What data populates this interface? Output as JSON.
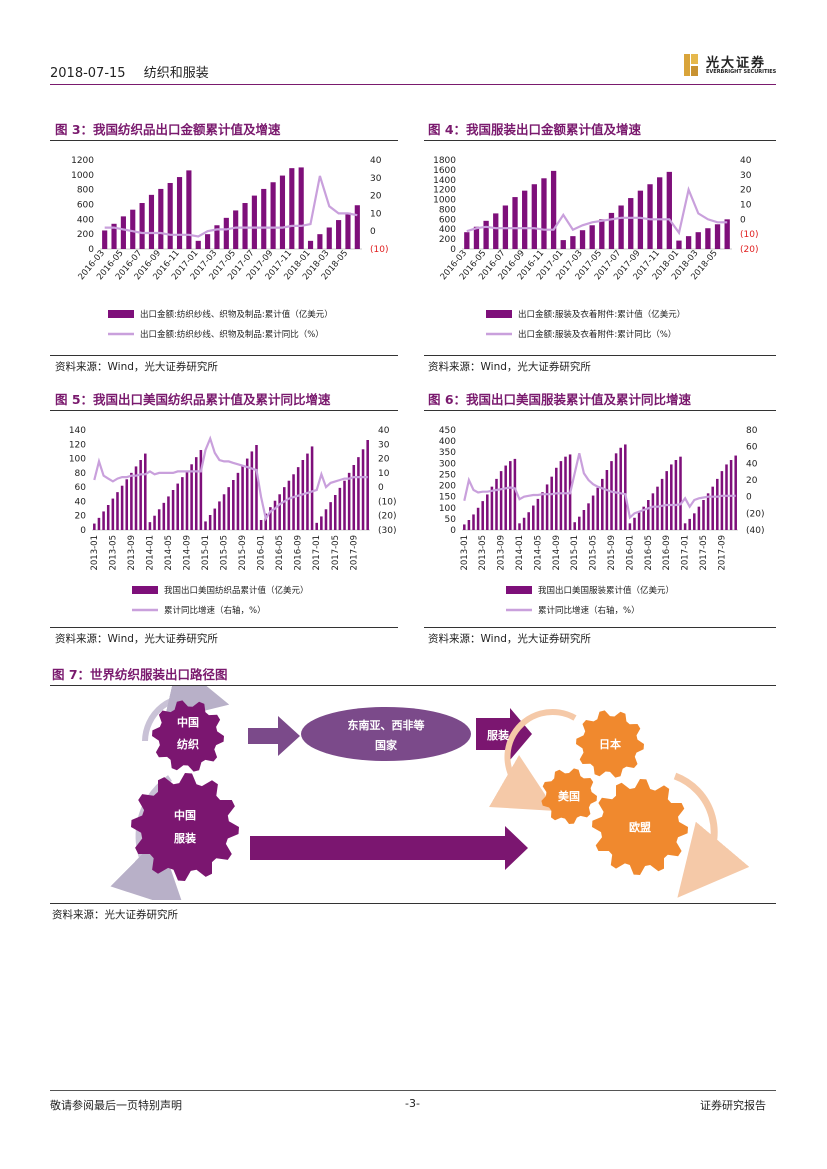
{
  "header": {
    "date": "2018-07-15",
    "section": "纺织和服装",
    "logo_text": "光大证券",
    "logo_en": "EVERBRIGHT SECURITIES"
  },
  "figures": [
    {
      "id": "fig3",
      "title": "图 3：我国纺织品出口金额累计值及增速",
      "source": "资料来源：Wind，光大证券研究所"
    },
    {
      "id": "fig4",
      "title": "图 4：我国服装出口金额累计值及增速",
      "source": "资料来源：Wind，光大证券研究所"
    },
    {
      "id": "fig5",
      "title": "图 5：我国出口美国纺织品累计值及累计同比增速",
      "source": "资料来源：Wind，光大证券研究所"
    },
    {
      "id": "fig6",
      "title": "图 6：我国出口美国服装累计值及累计同比增速",
      "source": "资料来源：Wind，光大证券研究所"
    }
  ],
  "chart_data": [
    {
      "type": "bar",
      "id": "fig3",
      "title": "图 3：我国纺织品出口金额累计值及增速",
      "categories": [
        "2016-03",
        "2016-04",
        "2016-05",
        "2016-06",
        "2016-07",
        "2016-08",
        "2016-09",
        "2016-10",
        "2016-11",
        "2016-12",
        "2017-01",
        "2017-02",
        "2017-03",
        "2017-04",
        "2017-05",
        "2017-06",
        "2017-07",
        "2017-08",
        "2017-09",
        "2017-10",
        "2017-11",
        "2017-12",
        "2018-01",
        "2018-02",
        "2018-03",
        "2018-04",
        "2018-05",
        "2018-06"
      ],
      "xtick_labels": [
        "2016-03",
        "2016-05",
        "2016-07",
        "2016-09",
        "2016-11",
        "2017-01",
        "2017-03",
        "2017-05",
        "2017-07",
        "2017-09",
        "2017-11",
        "2018-01",
        "2018-03",
        "2018-05"
      ],
      "series": [
        {
          "name": "出口金额:纺织纱线、织物及制品:累计值（亿美元）",
          "axis": "left",
          "type": "bar",
          "values": [
            250,
            340,
            440,
            530,
            620,
            730,
            810,
            890,
            970,
            1060,
            110,
            200,
            320,
            420,
            520,
            620,
            720,
            810,
            900,
            990,
            1090,
            1100,
            110,
            200,
            290,
            390,
            490,
            590
          ]
        },
        {
          "name": "出口金额:纺织纱线、织物及制品:累计同比（%）",
          "axis": "right",
          "type": "line",
          "values": [
            2,
            2,
            1,
            0,
            -1,
            -1,
            -1,
            -2,
            -2,
            -2,
            -3,
            0,
            1,
            1,
            2,
            2,
            2,
            2,
            2,
            2,
            3,
            3,
            4,
            31,
            14,
            10,
            10,
            9
          ]
        }
      ],
      "ylim_left": [
        0,
        1200
      ],
      "yticks_left": [
        0,
        200,
        400,
        600,
        800,
        1000,
        1200
      ],
      "ylim_right": [
        -10,
        40
      ],
      "yticks_right": [
        "(10)",
        "0",
        "10",
        "20",
        "30",
        "40"
      ]
    },
    {
      "type": "bar",
      "id": "fig4",
      "title": "图 4：我国服装出口金额累计值及增速",
      "categories": [
        "2016-03",
        "2016-04",
        "2016-05",
        "2016-06",
        "2016-07",
        "2016-08",
        "2016-09",
        "2016-10",
        "2016-11",
        "2016-12",
        "2017-01",
        "2017-02",
        "2017-03",
        "2017-04",
        "2017-05",
        "2017-06",
        "2017-07",
        "2017-08",
        "2017-09",
        "2017-10",
        "2017-11",
        "2017-12",
        "2018-01",
        "2018-02",
        "2018-03",
        "2018-04",
        "2018-05",
        "2018-06"
      ],
      "xtick_labels": [
        "2016-03",
        "2016-05",
        "2016-07",
        "2016-09",
        "2016-11",
        "2017-01",
        "2017-03",
        "2017-05",
        "2017-07",
        "2017-09",
        "2017-11",
        "2018-01",
        "2018-03",
        "2018-05"
      ],
      "series": [
        {
          "name": "出口金额:服装及衣着附件:累计值（亿美元）",
          "axis": "left",
          "type": "bar",
          "values": [
            340,
            450,
            570,
            720,
            880,
            1050,
            1180,
            1310,
            1430,
            1580,
            180,
            260,
            380,
            480,
            600,
            730,
            880,
            1030,
            1180,
            1310,
            1450,
            1560,
            170,
            260,
            340,
            420,
            500,
            600
          ]
        },
        {
          "name": "出口金额:服装及衣着附件:累计同比（%）",
          "axis": "right",
          "type": "line",
          "values": [
            -8,
            -6,
            -5,
            -6,
            -6,
            -6,
            -6,
            -6,
            -7,
            -7,
            3,
            -7,
            -4,
            -2,
            -1,
            0,
            1,
            1,
            1,
            0,
            0,
            0,
            -9,
            20,
            4,
            0,
            -2,
            -2
          ]
        }
      ],
      "ylim_left": [
        0,
        1800
      ],
      "yticks_left": [
        0,
        200,
        400,
        600,
        800,
        1000,
        1200,
        1400,
        1600,
        1800
      ],
      "ylim_right": [
        -20,
        40
      ],
      "yticks_right": [
        "(20)",
        "(10)",
        "0",
        "10",
        "20",
        "30",
        "40"
      ]
    },
    {
      "type": "bar",
      "id": "fig5",
      "title": "图 5：我国出口美国纺织品累计值及累计同比增速",
      "categories": [
        "2013-01",
        "2013-02",
        "2013-03",
        "2013-04",
        "2013-05",
        "2013-06",
        "2013-07",
        "2013-08",
        "2013-09",
        "2013-10",
        "2013-11",
        "2013-12",
        "2014-01",
        "2014-02",
        "2014-03",
        "2014-04",
        "2014-05",
        "2014-06",
        "2014-07",
        "2014-08",
        "2014-09",
        "2014-10",
        "2014-11",
        "2014-12",
        "2015-01",
        "2015-02",
        "2015-03",
        "2015-04",
        "2015-05",
        "2015-06",
        "2015-07",
        "2015-08",
        "2015-09",
        "2015-10",
        "2015-11",
        "2015-12",
        "2016-01",
        "2016-02",
        "2016-03",
        "2016-04",
        "2016-05",
        "2016-06",
        "2016-07",
        "2016-08",
        "2016-09",
        "2016-10",
        "2016-11",
        "2016-12",
        "2017-01",
        "2017-02",
        "2017-03",
        "2017-04",
        "2017-05",
        "2017-06",
        "2017-07",
        "2017-08",
        "2017-09",
        "2017-10",
        "2017-11",
        "2017-12"
      ],
      "xtick_labels": [
        "2013-01",
        "2013-05",
        "2013-09",
        "2014-01",
        "2014-05",
        "2014-09",
        "2015-01",
        "2015-05",
        "2015-09",
        "2016-01",
        "2016-05",
        "2016-09",
        "2017-01",
        "2017-05",
        "2017-09"
      ],
      "series": [
        {
          "name": "我国出口美国纺织品累计值（亿美元）",
          "axis": "left",
          "type": "bar",
          "values": [
            9,
            17,
            26,
            35,
            44,
            53,
            62,
            71,
            80,
            89,
            98,
            107,
            11,
            20,
            29,
            38,
            47,
            56,
            65,
            74,
            83,
            92,
            102,
            112,
            12,
            21,
            30,
            40,
            50,
            60,
            70,
            80,
            90,
            100,
            110,
            119,
            14,
            23,
            32,
            41,
            50,
            60,
            69,
            78,
            88,
            98,
            107,
            117,
            10,
            19,
            29,
            39,
            49,
            59,
            69,
            80,
            91,
            102,
            113,
            126
          ]
        },
        {
          "name": "累计同比增速（右轴，%）",
          "axis": "right",
          "type": "line",
          "values": [
            5,
            18,
            8,
            6,
            4,
            6,
            7,
            7,
            8,
            8,
            9,
            9,
            11,
            9,
            10,
            10,
            10,
            10,
            11,
            11,
            11,
            11,
            11,
            11,
            26,
            34,
            24,
            19,
            18,
            18,
            17,
            16,
            15,
            14,
            13,
            12,
            -7,
            -22,
            -17,
            -15,
            -12,
            -10,
            -8,
            -7,
            -6,
            -5,
            -4,
            -3,
            -2,
            9,
            0,
            3,
            4,
            5,
            6,
            6,
            7,
            7,
            7,
            7
          ]
        }
      ],
      "ylim_left": [
        0,
        140
      ],
      "yticks_left": [
        0,
        20,
        40,
        60,
        80,
        100,
        120,
        140
      ],
      "ylim_right": [
        -30,
        40
      ],
      "yticks_right": [
        "(30)",
        "(20)",
        "(10)",
        "0",
        "10",
        "20",
        "30",
        "40"
      ]
    },
    {
      "type": "bar",
      "id": "fig6",
      "title": "图 6：我国出口美国服装累计值及累计同比增速",
      "categories": [
        "2013-01",
        "2013-02",
        "2013-03",
        "2013-04",
        "2013-05",
        "2013-06",
        "2013-07",
        "2013-08",
        "2013-09",
        "2013-10",
        "2013-11",
        "2013-12",
        "2014-01",
        "2014-02",
        "2014-03",
        "2014-04",
        "2014-05",
        "2014-06",
        "2014-07",
        "2014-08",
        "2014-09",
        "2014-10",
        "2014-11",
        "2014-12",
        "2015-01",
        "2015-02",
        "2015-03",
        "2015-04",
        "2015-05",
        "2015-06",
        "2015-07",
        "2015-08",
        "2015-09",
        "2015-10",
        "2015-11",
        "2015-12",
        "2016-01",
        "2016-02",
        "2016-03",
        "2016-04",
        "2016-05",
        "2016-06",
        "2016-07",
        "2016-08",
        "2016-09",
        "2016-10",
        "2016-11",
        "2016-12",
        "2017-01",
        "2017-02",
        "2017-03",
        "2017-04",
        "2017-05",
        "2017-06",
        "2017-07",
        "2017-08",
        "2017-09",
        "2017-10",
        "2017-11",
        "2017-12"
      ],
      "xtick_labels": [
        "2013-01",
        "2013-05",
        "2013-09",
        "2014-01",
        "2014-05",
        "2014-09",
        "2015-01",
        "2015-05",
        "2015-09",
        "2016-01",
        "2016-05",
        "2016-09",
        "2017-01",
        "2017-05",
        "2017-09"
      ],
      "series": [
        {
          "name": "我国出口美国服装累计值（亿美元）",
          "axis": "left",
          "type": "bar",
          "values": [
            25,
            45,
            70,
            100,
            130,
            160,
            195,
            230,
            265,
            290,
            310,
            320,
            30,
            55,
            80,
            110,
            140,
            170,
            205,
            240,
            280,
            310,
            330,
            340,
            35,
            60,
            90,
            120,
            155,
            190,
            230,
            270,
            310,
            345,
            370,
            385,
            30,
            55,
            80,
            105,
            135,
            165,
            195,
            230,
            265,
            295,
            315,
            330,
            30,
            50,
            75,
            105,
            135,
            165,
            195,
            230,
            265,
            295,
            315,
            335
          ]
        },
        {
          "name": "累计同比增速（右轴，%）",
          "axis": "right",
          "type": "line",
          "values": [
            -5,
            20,
            8,
            5,
            6,
            6,
            7,
            8,
            9,
            10,
            11,
            10,
            -3,
            0,
            1,
            2,
            2,
            3,
            3,
            3,
            4,
            4,
            4,
            4,
            28,
            52,
            28,
            20,
            15,
            12,
            10,
            8,
            6,
            5,
            4,
            3,
            -25,
            -20,
            -18,
            -16,
            -14,
            -12,
            -12,
            -11,
            -10,
            -10,
            -10,
            -9,
            -2,
            -12,
            -4,
            -2,
            -1,
            0,
            0,
            0,
            1,
            1,
            1,
            1
          ]
        }
      ],
      "ylim_left": [
        0,
        450
      ],
      "yticks_left": [
        0,
        50,
        100,
        150,
        200,
        250,
        300,
        350,
        400,
        450
      ],
      "ylim_right": [
        -40,
        80
      ],
      "yticks_right": [
        "(40)",
        "(20)",
        "0",
        "20",
        "40",
        "60",
        "80"
      ]
    }
  ],
  "fig7": {
    "title": "图 7：世界纺织服装出口路径图",
    "source": "资料来源：光大证券研究所",
    "nodes": {
      "china_textile": "中国\n纺织",
      "china_textile_l1": "中国",
      "china_textile_l2": "纺织",
      "china_apparel_l1": "中国",
      "china_apparel_l2": "服装",
      "sea_africa_l1": "东南亚、西非等",
      "sea_africa_l2": "国家",
      "apparel_label": "服装",
      "japan": "日本",
      "usa": "美国",
      "eu": "欧盟"
    }
  },
  "footer": {
    "left": "敬请参阅最后一页特别声明",
    "center": "-3-",
    "right": "证券研究报告"
  },
  "colors": {
    "bar": "#7e0f7a",
    "line": "#c9a0dc",
    "brand": "#7a1a6e",
    "red_tick": "#e02020",
    "gear_purple": "#7b1670",
    "gear_orange": "#f0892e"
  }
}
